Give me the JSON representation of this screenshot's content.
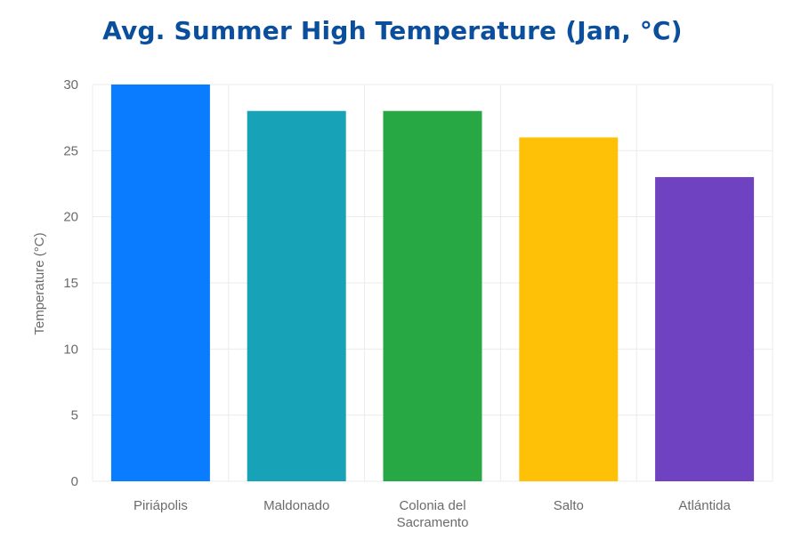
{
  "chart_data": {
    "type": "bar",
    "title": "Avg. Summer High Temperature (Jan, °C)",
    "xlabel": "",
    "ylabel": "Temperature (°C)",
    "ylim": [
      0,
      30
    ],
    "yticks": [
      0,
      5,
      10,
      15,
      20,
      25,
      30
    ],
    "categories": [
      "Piriápolis",
      "Maldonado",
      "Colonia del Sacramento",
      "Salto",
      "Atlántida"
    ],
    "category_label_lines": [
      [
        "Piriápolis"
      ],
      [
        "Maldonado"
      ],
      [
        "Colonia del",
        "Sacramento"
      ],
      [
        "Salto"
      ],
      [
        "Atlántida"
      ]
    ],
    "values": [
      30,
      28,
      28,
      26,
      23
    ],
    "colors": [
      "#0a7cff",
      "#17a2b8",
      "#28a745",
      "#ffc107",
      "#6f42c1"
    ],
    "grid": true,
    "legend": "none"
  },
  "colors": {
    "title": "#0b4f9c",
    "grid": "#ebebeb",
    "tick_text": "#6b6b6b"
  }
}
